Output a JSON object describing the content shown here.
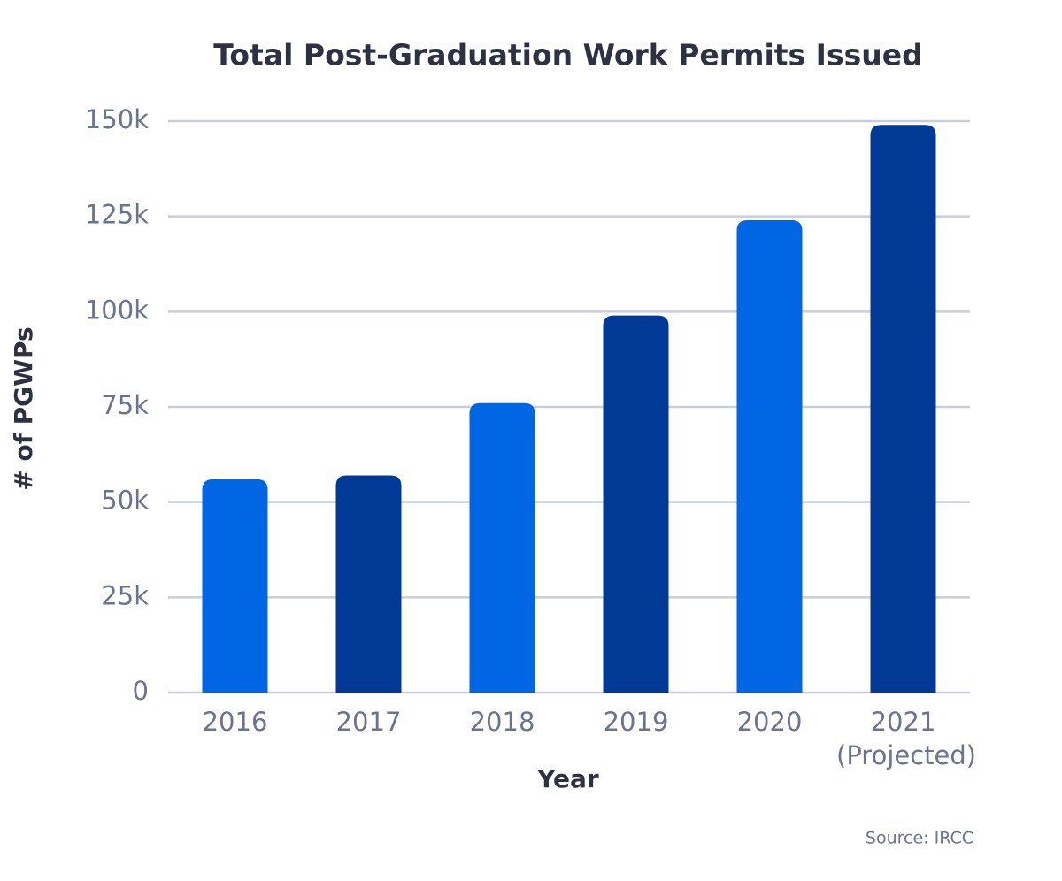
{
  "chart_data": {
    "type": "bar",
    "title": "Total Post-Graduation Work Permits Issued",
    "x_label": "Year",
    "y_label": "# of PGWPs",
    "source": "Source: IRCC",
    "categories": [
      "2016",
      "2017",
      "2018",
      "2019",
      "2020",
      "2021 (Projected)"
    ],
    "values": [
      56000,
      57000,
      76000,
      99000,
      124000,
      149000
    ],
    "colors": [
      "#0066e3",
      "#003a96",
      "#0066e3",
      "#003a96",
      "#0066e3",
      "#003a96"
    ],
    "ylim": [
      0,
      150000
    ],
    "yticks": [
      {
        "value": 0,
        "label": "0"
      },
      {
        "value": 25000,
        "label": "25k"
      },
      {
        "value": 50000,
        "label": "50k"
      },
      {
        "value": 75000,
        "label": "75k"
      },
      {
        "value": 100000,
        "label": "100k"
      },
      {
        "value": 125000,
        "label": "125k"
      },
      {
        "value": 150000,
        "label": "150k"
      }
    ],
    "grid": true
  }
}
